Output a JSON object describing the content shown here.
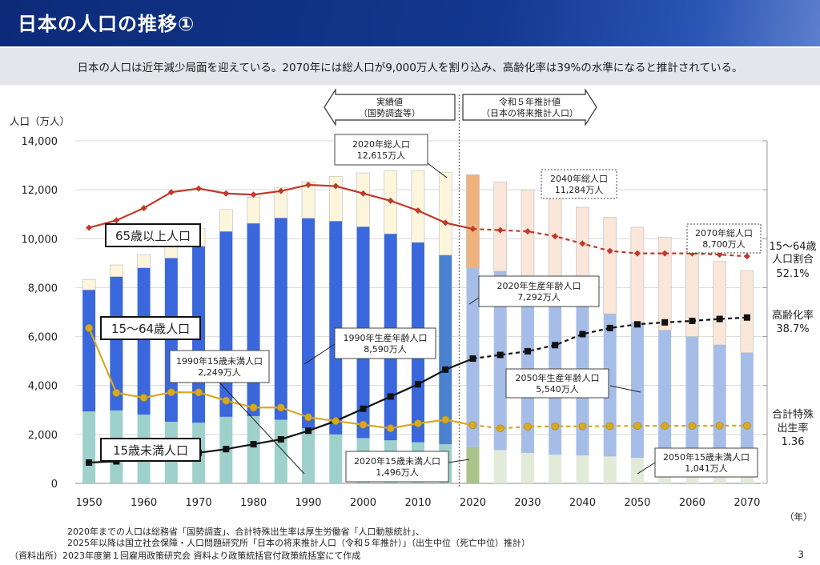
{
  "header": {
    "title": "日本の人口の推移①"
  },
  "summary": "日本の人口は近年減少局面を迎えている。2070年には総人口が9,000万人を割り込み、高齢化率は39%の水準になると推計されている。",
  "footnotes": [
    "2020年までの人口は総務省「国勢調査」、合計特殊出生率は厚生労働省「人口動態統計」、",
    "2025年以降は国立社会保障・人口問題研究所「日本の将来推計人口（令和５年推計）」（出生中位（死亡中位）推計）",
    "（資料出所）2023年度第１回雇用政策研究会 資料より政策統括官付政策統括室にて作成"
  ],
  "page_number": "3",
  "colors": {
    "u15_actual": "#9ed0cc",
    "u15_proj": "#e1ebd8",
    "u15_2020": "#a9c48a",
    "w_actual": "#3a67db",
    "w_proj": "#a6bde8",
    "w_2015": "#4b82d0",
    "o_actual": "#fdf6dc",
    "o_proj": "#fbe6da",
    "o_2020": "#f0b27c",
    "aging": "#c0392b",
    "working_count": "#111111",
    "tfr": "#d8aa22",
    "grid": "#d9d9d9"
  },
  "chart_data": {
    "type": "bar",
    "ylabel": "人口（万人）",
    "xlabel": "（年）",
    "ylim": [
      0,
      14000
    ],
    "yticks": [
      "0",
      "2,000",
      "4,000",
      "6,000",
      "8,000",
      "10,000",
      "12,000",
      "14,000"
    ],
    "x": [
      1950,
      1955,
      1960,
      1965,
      1970,
      1975,
      1980,
      1985,
      1990,
      1995,
      2000,
      2005,
      2010,
      2015,
      2020,
      2025,
      2030,
      2035,
      2040,
      2045,
      2050,
      2055,
      2060,
      2065,
      2070
    ],
    "xtick_labels": [
      "1950",
      "1960",
      "1970",
      "1980",
      "1990",
      "2000",
      "2010",
      "2020",
      "2030",
      "2040",
      "2050",
      "2060",
      "2070"
    ],
    "stacked_series": [
      {
        "name": "15歳未満人口",
        "values": [
          2940,
          2980,
          2810,
          2520,
          2480,
          2720,
          2750,
          2600,
          2249,
          2000,
          1850,
          1760,
          1680,
          1600,
          1496,
          1360,
          1240,
          1170,
          1140,
          1100,
          1041,
          980,
          920,
          860,
          800
        ]
      },
      {
        "name": "15～64歳人口",
        "values": [
          4970,
          5470,
          6000,
          6690,
          7210,
          7580,
          7880,
          8250,
          8590,
          8720,
          8640,
          8440,
          8170,
          7730,
          7292,
          7310,
          7080,
          6720,
          6210,
          5830,
          5540,
          5280,
          5080,
          4800,
          4540
        ]
      },
      {
        "name": "65歳以上人口",
        "values": [
          420,
          480,
          540,
          620,
          740,
          890,
          1070,
          1250,
          1490,
          1830,
          2200,
          2570,
          2920,
          3390,
          3827,
          3653,
          3680,
          3770,
          3934,
          3950,
          3889,
          3800,
          3610,
          3410,
          3360
        ]
      }
    ],
    "totals_note": "2020年総人口 12,615万人",
    "line_series": [
      {
        "name": "高齢化率",
        "marker": "diamond",
        "values": [
          4.9,
          5.3,
          5.7,
          6.3,
          7.1,
          7.9,
          9.1,
          10.3,
          12.1,
          14.6,
          17.4,
          20.2,
          23.0,
          26.6,
          28.6,
          29.6,
          30.8,
          32.3,
          34.8,
          36.3,
          37.1,
          37.6,
          37.9,
          38.4,
          38.7
        ]
      },
      {
        "name": "15～64歳人口割合",
        "marker": "square",
        "values": [
          59.6,
          61.2,
          64.1,
          68.0,
          68.9,
          67.7,
          67.3,
          68.2,
          69.7,
          69.5,
          68.1,
          66.1,
          63.8,
          60.8,
          59.5,
          59.3,
          58.9,
          57.9,
          55.1,
          52.9,
          52.6,
          52.5,
          52.3,
          52.2,
          52.1
        ]
      },
      {
        "name": "合計特殊出生率",
        "marker": "circle",
        "values": [
          3.65,
          2.37,
          2.0,
          2.14,
          2.13,
          1.91,
          1.75,
          1.76,
          1.54,
          1.42,
          1.36,
          1.26,
          1.39,
          1.45,
          1.33,
          1.27,
          1.31,
          1.32,
          1.33,
          1.34,
          1.35,
          1.35,
          1.35,
          1.36,
          1.36
        ]
      }
    ],
    "legend_boxes": [
      {
        "label": "65歳以上人口"
      },
      {
        "label": "15～64歳人口"
      },
      {
        "label": "15歳未満人口"
      }
    ],
    "section_arrows": [
      {
        "line1": "実績値",
        "line2": "（国勢調査等）"
      },
      {
        "line1": "令和５年推計値",
        "line2": "（日本の将来推計人口）"
      }
    ],
    "annotations": [
      {
        "line1": "2020年総人口",
        "line2": "12,615万人"
      },
      {
        "line1": "2040年総人口",
        "line2": "11,284万人"
      },
      {
        "line1": "2070年総人口",
        "line2": "8,700万人"
      },
      {
        "line1": "2020年生産年齢人口",
        "line2": "7,292万人"
      },
      {
        "line1": "1990年生産年齢人口",
        "line2": "8,590万人"
      },
      {
        "line1": "1990年15歳未満人口",
        "line2": "2,249万人"
      },
      {
        "line1": "2050年生産年齢人口",
        "line2": "5,540万人"
      },
      {
        "line1": "2020年15歳未満人口",
        "line2": "1,496万人"
      },
      {
        "line1": "2050年15歳未満人口",
        "line2": "1,041万人"
      }
    ],
    "right_labels": [
      {
        "line1": "15～64歳",
        "line2": "人口割合",
        "line3": "52.1%"
      },
      {
        "line1": "高齢化率",
        "line2": "38.7%"
      },
      {
        "line1": "合計特殊",
        "line2": "出生率",
        "line3": "1.36"
      }
    ]
  }
}
